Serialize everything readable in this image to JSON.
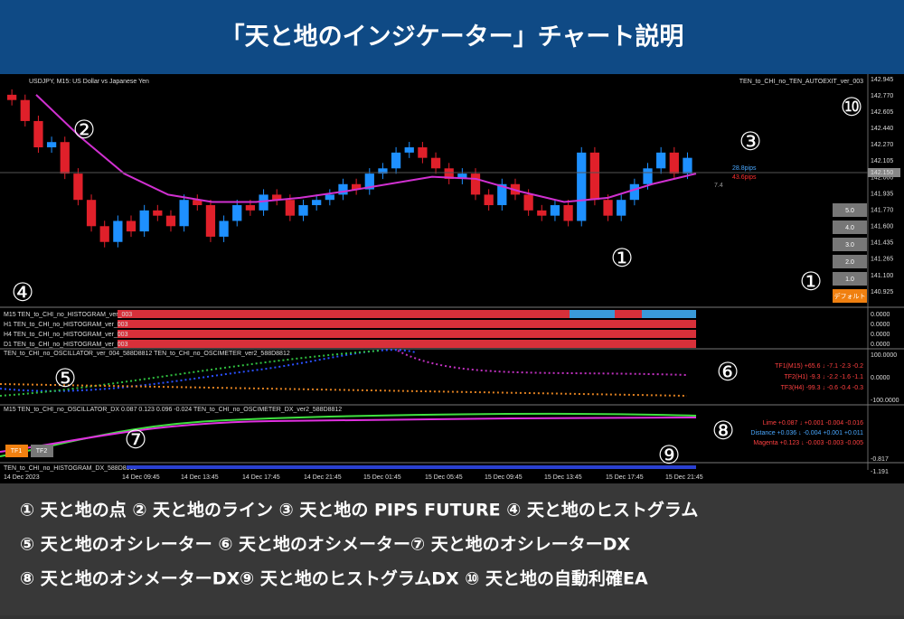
{
  "header": {
    "title": "「天と地のインジケーター」チャート説明"
  },
  "chart": {
    "symbol": "USDJPY, M15: US Dollar vs Japanese Yen",
    "ea": "TEN_to_CHI_no_TEN_AUTOEXIT_ver_003",
    "price_ticks": [
      "142.945",
      "142.770",
      "142.605",
      "142.440",
      "142.270",
      "142.105",
      "142.000",
      "141.935",
      "141.770",
      "141.600",
      "141.435",
      "141.265",
      "141.100",
      "140.925"
    ],
    "ylim": [
      140.925,
      142.945
    ],
    "closes": [
      142.75,
      142.55,
      142.3,
      142.35,
      142.05,
      141.8,
      141.55,
      141.4,
      141.6,
      141.5,
      141.7,
      141.65,
      141.55,
      141.8,
      141.75,
      141.45,
      141.6,
      141.75,
      141.7,
      141.85,
      141.8,
      141.65,
      141.75,
      141.8,
      141.85,
      141.95,
      141.9,
      142.05,
      142.1,
      142.25,
      142.3,
      142.2,
      142.1,
      142.0,
      142.05,
      141.85,
      141.75,
      141.95,
      141.85,
      141.7,
      141.65,
      141.75,
      141.6,
      142.25,
      141.8,
      141.65,
      141.8,
      141.95,
      142.1,
      142.25,
      142.05,
      142.2
    ],
    "ma": [
      142.8,
      142.4,
      142.05,
      141.85,
      141.78,
      141.78,
      141.82,
      141.88,
      141.95,
      142.02,
      142.0,
      141.88,
      141.78,
      141.82,
      141.95,
      142.05
    ],
    "pips_up": "28.8pips",
    "pips_down": "43.6pips",
    "pips_diff": "7.4",
    "price_tag": "142.150",
    "buttons": [
      "5.0",
      "4.0",
      "3.0",
      "2.0",
      "1.0",
      "デフォルト"
    ],
    "histograms": [
      "M15 TEN_to_CHI_no_HISTOGRAM_ver_003",
      "H1 TEN_to_CHI_no_HISTOGRAM_ver_003",
      "H4 TEN_to_CHI_no_HISTOGRAM_ver_003",
      "D1 TEN_to_CHI_no_HISTOGRAM_ver_003"
    ],
    "hist_axis": "0.0000",
    "osc_title": "TEN_to_CHI_no_OSCILLATOR_ver_004_588D8812 TEN_to_CHI_no_OSCIMETER_ver2_588D8812",
    "osc_readout": [
      "TF1(M15)  +65.6  ↓  -7.1  -2.3  -0.2",
      "TF2(H1)  -9.3  ↓  -2.2  -1.6  -1.1",
      "TF3(H4)  -99.3  ↓  -0.6  -0.4  -0.3"
    ],
    "osc_axis": [
      "100.0000",
      "0.0000",
      "-100.0000"
    ],
    "dx_title": "M15 TEN_to_CHI_no_OSCILLATOR_DX 0.087 0.123 0.096 -0.024 TEN_to_CHI_no_OSCIMETER_DX_ver2_588D8812",
    "dx_readout": [
      "Lime  +0.087  ↓  +0.001  -0.004  -0.016",
      "Distance  +0.036  ↓  -0.004  +0.001  +0.011",
      "Magenta  +0.123  ↓  -0.003  -0.003  -0.005"
    ],
    "tf_buttons": [
      "TF1",
      "TF2"
    ],
    "hdx_title": "TEN_to_CHI_no_HISTOGRAM_DX_588D8812",
    "hdx_axis": [
      "-0.817",
      "-1.191"
    ],
    "time_ticks": [
      "14 Dec 2023",
      "14 Dec 09:45",
      "14 Dec 13:45",
      "14 Dec 17:45",
      "14 Dec 21:45",
      "15 Dec 01:45",
      "15 Dec 05:45",
      "15 Dec 09:45",
      "15 Dec 13:45",
      "15 Dec 17:45",
      "15 Dec 21:45"
    ],
    "markers": [
      "①",
      "②",
      "③",
      "④",
      "⑤",
      "⑥",
      "⑦",
      "⑧",
      "⑨",
      "⑩",
      "①"
    ]
  },
  "legend": {
    "lines": [
      "① 天と地の点 ② 天と地のライン ③ 天と地の PIPS FUTURE ④ 天と地のヒストグラム",
      "⑤ 天と地のオシレーター ⑥ 天と地のオシメーター⑦ 天と地のオシレーターDX",
      "⑧ 天と地のオシメーターDX⑨ 天と地のヒストグラムDX ⑩ 天と地の自動利確EA"
    ]
  }
}
